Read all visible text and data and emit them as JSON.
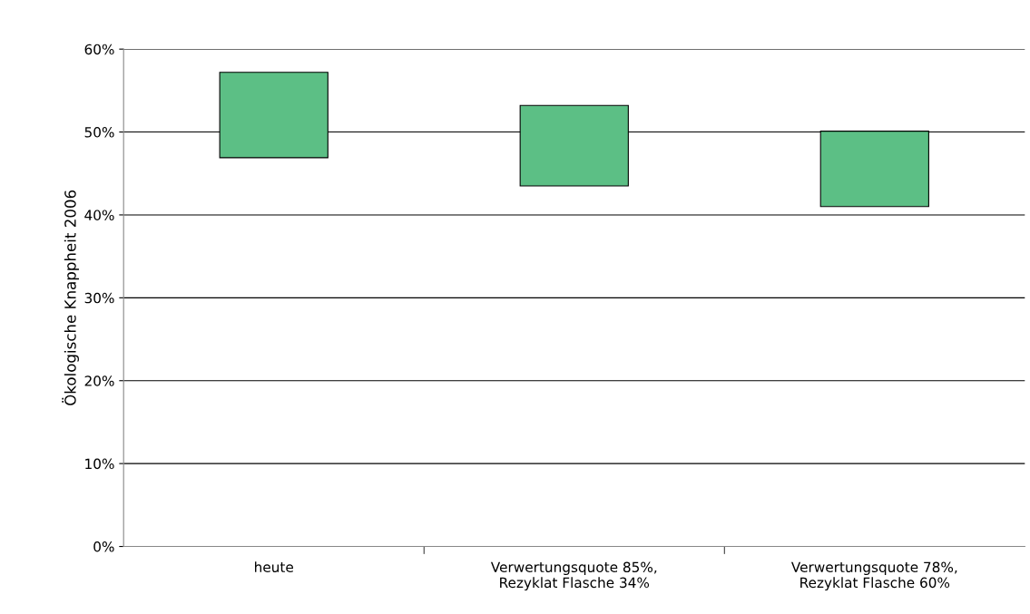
{
  "chart_data": {
    "type": "bar",
    "ylabel": "Ökologische Knappheit 2006",
    "categories": [
      "heute",
      "Verwertungsquote 85%,\nRezyklat Flasche 34%",
      "Verwertungsquote 78%,\nRezyklat Flasche 60%"
    ],
    "base": [
      46.9,
      43.5,
      41.0
    ],
    "values": [
      10.3,
      9.7,
      9.1
    ],
    "color": "#5cbf85",
    "ylim": [
      0,
      60
    ],
    "yticks": [
      {
        "value": 0,
        "label": "0%"
      },
      {
        "value": 10,
        "label": "10%"
      },
      {
        "value": 20,
        "label": "20%"
      },
      {
        "value": 30,
        "label": "30%"
      },
      {
        "value": 40,
        "label": "40%"
      },
      {
        "value": 50,
        "label": "50%"
      },
      {
        "value": 60,
        "label": "60%"
      }
    ],
    "grid": "y",
    "legend": false
  }
}
